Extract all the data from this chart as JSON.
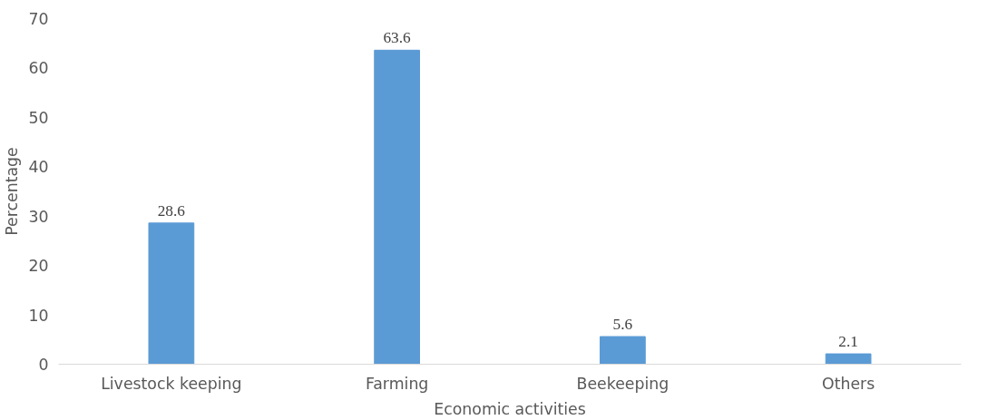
{
  "chart_data": {
    "type": "bar",
    "xlabel": "Economic activities",
    "ylabel": "Percentage",
    "categories": [
      "Livestock keeping",
      "Farming",
      "Beekeeping",
      "Others"
    ],
    "values": [
      28.6,
      63.6,
      5.6,
      2.1
    ],
    "color": "#5b9bd5",
    "ylim": [
      0,
      70
    ],
    "yticks": [
      0,
      10,
      20,
      30,
      40,
      50,
      60,
      70
    ],
    "grid": false,
    "data_labels": true
  }
}
